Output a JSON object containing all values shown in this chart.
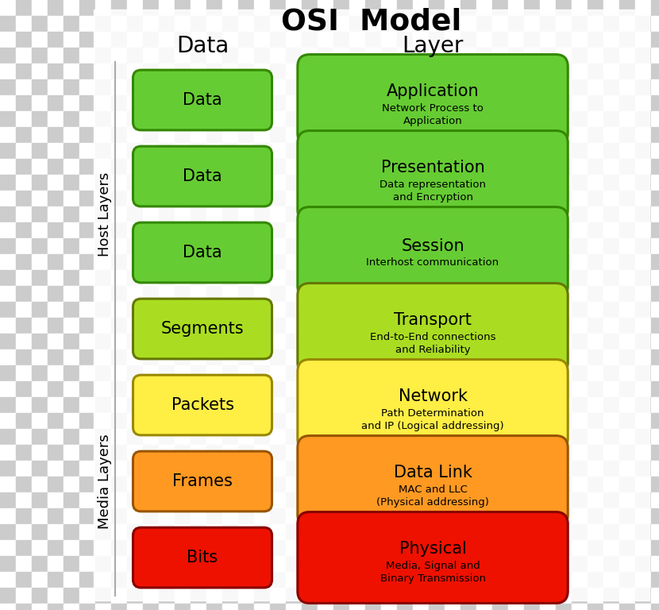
{
  "title": "OSI  Model",
  "col_header_data": "Data",
  "col_header_layer": "Layer",
  "layers": [
    {
      "data_unit": "Data",
      "layer_name": "Application",
      "layer_desc": "Network Process to\nApplication",
      "color": "#66cc33",
      "border_color": "#338800"
    },
    {
      "data_unit": "Data",
      "layer_name": "Presentation",
      "layer_desc": "Data representation\nand Encryption",
      "color": "#66cc33",
      "border_color": "#338800"
    },
    {
      "data_unit": "Data",
      "layer_name": "Session",
      "layer_desc": "Interhost communication",
      "color": "#66cc33",
      "border_color": "#338800"
    },
    {
      "data_unit": "Segments",
      "layer_name": "Transport",
      "layer_desc": "End-to-End connections\nand Reliability",
      "color": "#aadd22",
      "border_color": "#667700"
    },
    {
      "data_unit": "Packets",
      "layer_name": "Network",
      "layer_desc": "Path Determination\nand IP (Logical addressing)",
      "color": "#ffee44",
      "border_color": "#998800"
    },
    {
      "data_unit": "Frames",
      "layer_name": "Data Link",
      "layer_desc": "MAC and LLC\n(Physical addressing)",
      "color": "#ff9922",
      "border_color": "#995500"
    },
    {
      "data_unit": "Bits",
      "layer_name": "Physical",
      "layer_desc": "Media, Signal and\nBinary Transmission",
      "color": "#ee1100",
      "border_color": "#880000"
    }
  ],
  "host_layers_count": 4,
  "media_layers_count": 3,
  "checker_size": 20,
  "checker_light": "#ffffff",
  "checker_dark": "#cccccc",
  "sidebar_line_color": "#aaaaaa",
  "fig_width": 8.3,
  "fig_height": 7.68,
  "dpi": 100
}
